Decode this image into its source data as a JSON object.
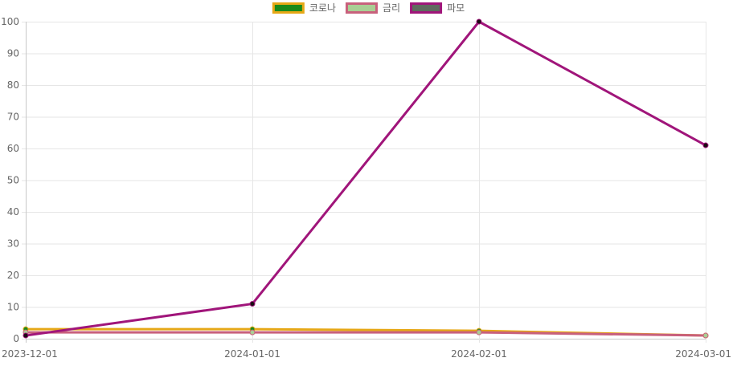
{
  "chart_data": {
    "type": "line",
    "x": [
      "2023-12-01",
      "2024-01-01",
      "2024-02-01",
      "2024-03-01"
    ],
    "ylim": [
      0,
      100
    ],
    "y_ticks": [
      0,
      10,
      20,
      30,
      40,
      50,
      60,
      70,
      80,
      90,
      100
    ],
    "grid": true,
    "legend_position": "top-center",
    "series": [
      {
        "name": "코로나",
        "values": [
          3,
          3,
          2.5,
          1
        ],
        "line_color": "#e6a817",
        "point_color": "#1a8a1a",
        "legend_fill": "#1a8a1a",
        "legend_border": "#e6a817"
      },
      {
        "name": "금리",
        "values": [
          2,
          2,
          2,
          1
        ],
        "line_color": "#c8607c",
        "point_color": "#a9cf94",
        "legend_fill": "#a9cf94",
        "legend_border": "#c8607c"
      },
      {
        "name": "파모",
        "values": [
          1,
          11,
          100,
          61
        ],
        "line_color": "#a0157a",
        "point_color": "#1a0a12",
        "legend_fill": "#5f6b5f",
        "legend_border": "#a0157a"
      }
    ]
  }
}
